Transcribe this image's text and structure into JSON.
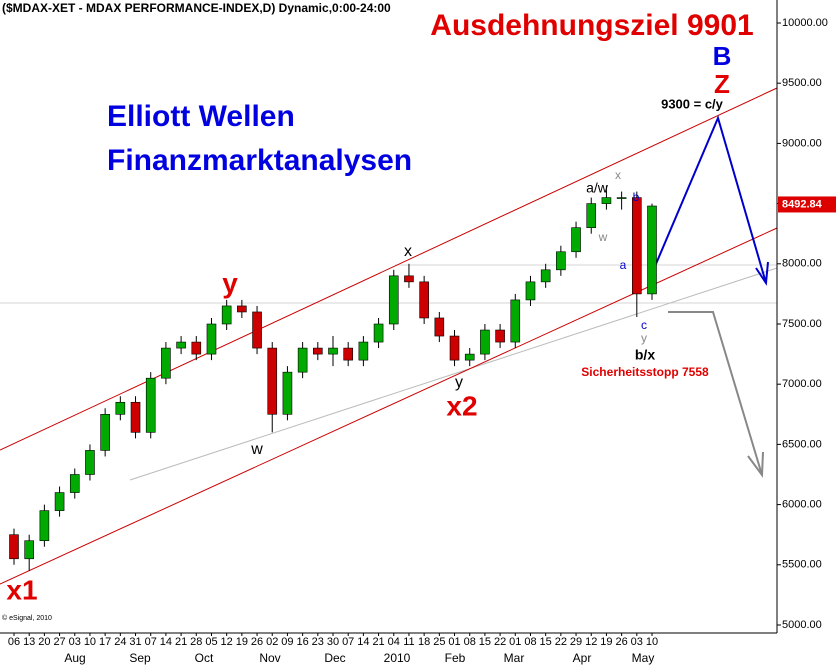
{
  "chart_data": {
    "type": "candlestick",
    "title": "($MDAX-XET - MDAX PERFORMANCE-INDEX,D) Dynamic,0:00-24:00",
    "categories": [
      "06",
      "13",
      "20",
      "27",
      "03",
      "10",
      "17",
      "24",
      "31",
      "07",
      "14",
      "21",
      "28",
      "05",
      "12",
      "19",
      "26",
      "02",
      "09",
      "16",
      "23",
      "30",
      "07",
      "14",
      "21",
      "04",
      "11",
      "18",
      "25",
      "01",
      "08",
      "15",
      "22",
      "01",
      "08",
      "15",
      "22",
      "29",
      "12",
      "19",
      "26",
      "03",
      "10"
    ],
    "month_labels": [
      "Aug",
      "Sep",
      "Oct",
      "Nov",
      "Dec",
      "2010",
      "Feb",
      "Mar",
      "Apr",
      "May"
    ],
    "open": [
      5750,
      5550,
      5700,
      5950,
      6100,
      6250,
      6450,
      6750,
      6850,
      6600,
      7050,
      7300,
      7350,
      7250,
      7500,
      7650,
      7600,
      7300,
      6750,
      7100,
      7300,
      7250,
      7300,
      7200,
      7350,
      7500,
      7900,
      7850,
      7550,
      7400,
      7200,
      7250,
      7450,
      7350,
      7700,
      7850,
      7950,
      8100,
      8300,
      8500,
      8550,
      8550,
      7750
    ],
    "high": [
      5800,
      5750,
      6000,
      6150,
      6300,
      6500,
      6800,
      6900,
      6900,
      7100,
      7350,
      7400,
      7400,
      7550,
      7700,
      7700,
      7650,
      7350,
      7150,
      7350,
      7350,
      7400,
      7350,
      7400,
      7550,
      7950,
      8000,
      7900,
      7600,
      7450,
      7300,
      7500,
      7500,
      7750,
      7900,
      8000,
      8150,
      8350,
      8550,
      8650,
      8600,
      8600,
      8500
    ],
    "low": [
      5500,
      5450,
      5650,
      5900,
      6050,
      6200,
      6400,
      6700,
      6550,
      6550,
      7000,
      7250,
      7200,
      7200,
      7450,
      7550,
      7250,
      6600,
      6700,
      7050,
      7200,
      7150,
      7150,
      7150,
      7300,
      7450,
      7800,
      7500,
      7350,
      7150,
      7150,
      7200,
      7300,
      7300,
      7650,
      7800,
      7900,
      8050,
      8250,
      8450,
      8450,
      7558,
      7700
    ],
    "close": [
      5550,
      5700,
      5950,
      6100,
      6250,
      6450,
      6750,
      6850,
      6600,
      7050,
      7300,
      7350,
      7250,
      7500,
      7650,
      7600,
      7300,
      6750,
      7100,
      7300,
      7250,
      7300,
      7200,
      7350,
      7500,
      7900,
      7850,
      7550,
      7400,
      7200,
      7250,
      7450,
      7350,
      7700,
      7850,
      7950,
      8100,
      8300,
      8500,
      8550,
      8550,
      7750,
      8480
    ],
    "up_color": "#00aa00",
    "down_color": "#cc0000",
    "last_price": 8492.84,
    "ylim": [
      5000,
      10000
    ],
    "yticks": [
      {
        "value": 5000,
        "label": "5000.00"
      },
      {
        "value": 5500,
        "label": "5500.00"
      },
      {
        "value": 6000,
        "label": "6000.00"
      },
      {
        "value": 6500,
        "label": "6500.00"
      },
      {
        "value": 7000,
        "label": "7000.00"
      },
      {
        "value": 7500,
        "label": "7500.00"
      },
      {
        "value": 8000,
        "label": "8000.00"
      },
      {
        "value": 8500,
        "label": "8500.00"
      },
      {
        "value": 9000,
        "label": "9000.00"
      },
      {
        "value": 9500,
        "label": "9500.00"
      },
      {
        "value": 10000,
        "label": "10000.00"
      }
    ],
    "annotations": [
      "Ausdehnungsziel 9901",
      "Elliott Wellen",
      "Finanzmarktanalysen",
      "x1",
      "y",
      "w",
      "x",
      "y",
      "x2",
      "a/w",
      "x",
      "w",
      "b",
      "a",
      "c",
      "y",
      "b/x",
      "Sicherheitsstopp 7558",
      "B",
      "Z",
      "9300 = c/y",
      "© eSignal, 2010"
    ]
  }
}
